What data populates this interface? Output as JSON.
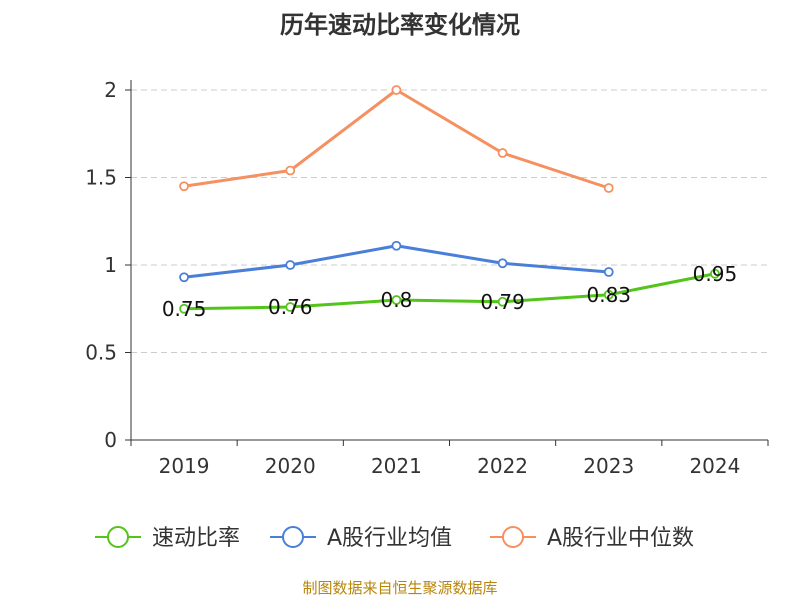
{
  "chart_data": {
    "type": "line",
    "title": "历年速动比率变化情况",
    "categories": [
      "2019",
      "2020",
      "2021",
      "2022",
      "2023",
      "2024"
    ],
    "ylim": [
      0,
      2
    ],
    "yticks": [
      "0",
      "0.5",
      "1",
      "1.5",
      "2"
    ],
    "grid": true,
    "legend_position": "bottom",
    "series": [
      {
        "name": "速动比率",
        "color": "#52c41a",
        "values": [
          0.75,
          0.76,
          0.8,
          0.79,
          0.83,
          0.95
        ],
        "labels": [
          "0.75",
          "0.76",
          "0.8",
          "0.79",
          "0.83",
          "0.95"
        ]
      },
      {
        "name": "A股行业均值",
        "color": "#4a7fd9",
        "values": [
          0.93,
          1.0,
          1.11,
          1.01,
          0.96,
          null
        ]
      },
      {
        "name": "A股行业中位数",
        "color": "#f59060",
        "values": [
          1.45,
          1.54,
          2.0,
          1.64,
          1.44,
          null
        ]
      }
    ]
  },
  "source": "制图数据来自恒生聚源数据库"
}
